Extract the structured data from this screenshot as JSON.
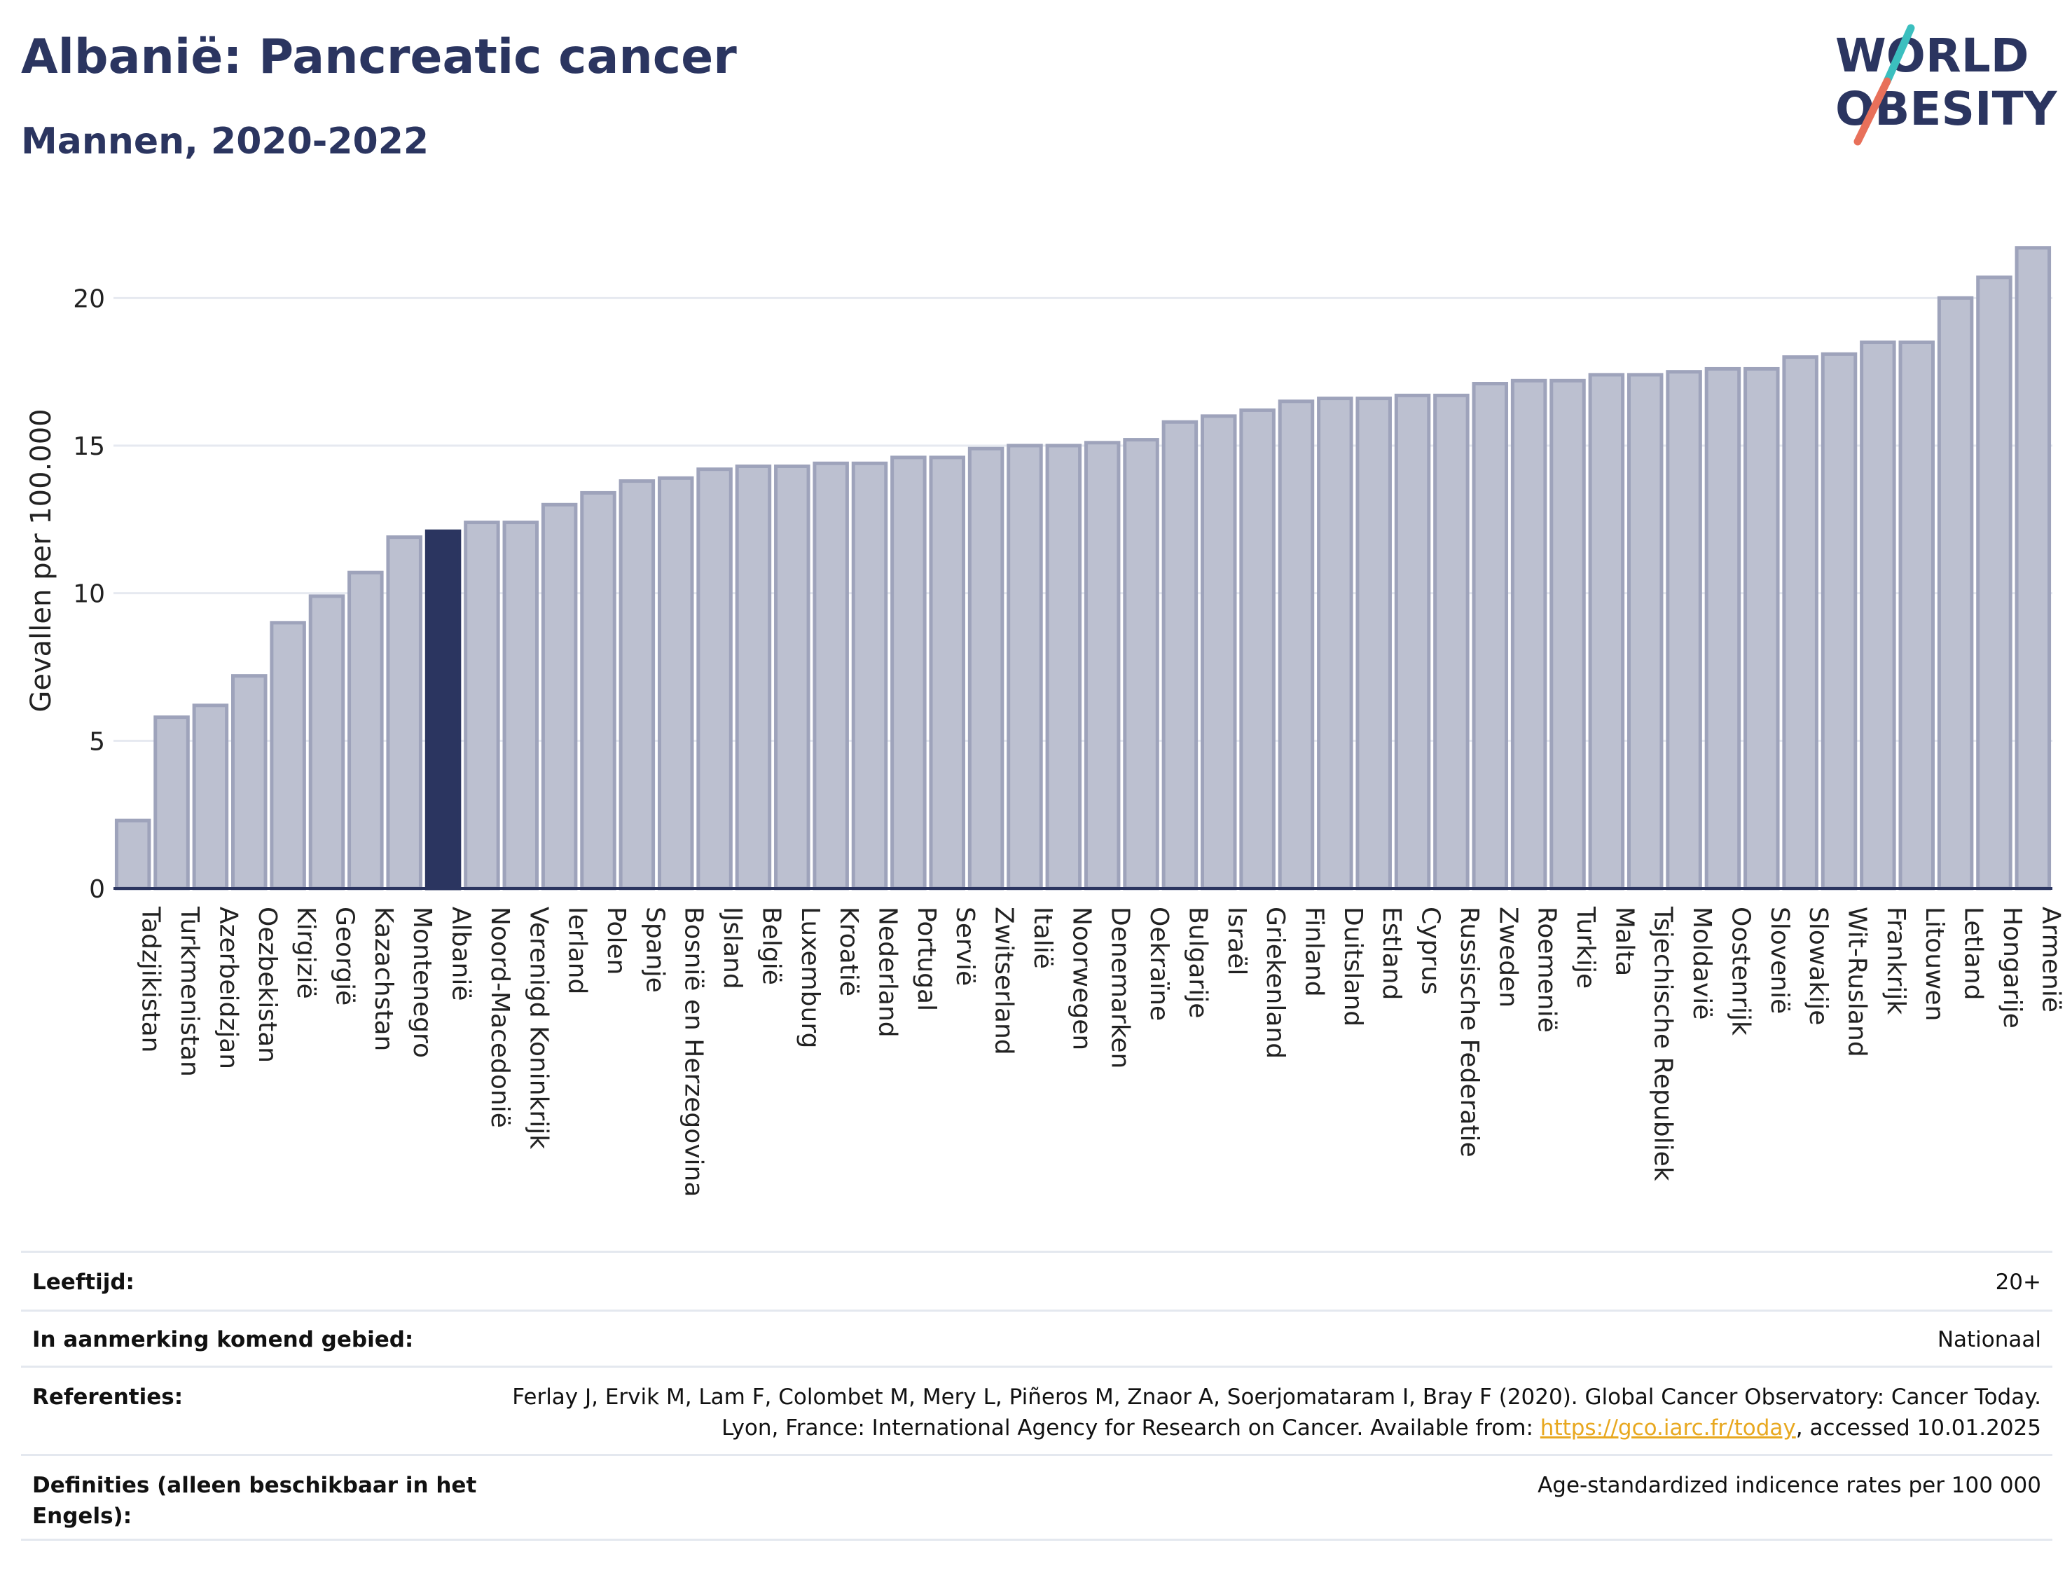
{
  "header": {
    "title": "Albanië: Pancreatic cancer",
    "subtitle": "Mannen, 2020-2022"
  },
  "logo": {
    "line1": "WORLD",
    "line2": "OBESITY"
  },
  "colors": {
    "bar": "#bcc0d0",
    "bar_edge": "#9ea3bb",
    "highlight": "#2b3560",
    "grid": "#e6e9f0",
    "logo_teal": "#3bbfbf",
    "logo_coral": "#e8705a"
  },
  "chart_data": {
    "type": "bar",
    "ylabel": "Gevallen per 100.000",
    "ylim": [
      0,
      22.5
    ],
    "yticks": [
      0,
      5,
      10,
      15,
      20
    ],
    "grid": true,
    "highlight": "Albanië",
    "categories": [
      "Tadzjikistan",
      "Turkmenistan",
      "Azerbeidzjan",
      "Oezbekistan",
      "Kirgizië",
      "Georgië",
      "Kazachstan",
      "Montenegro",
      "Albanië",
      "Noord-Macedonië",
      "Verenigd Koninkrijk",
      "Ierland",
      "Polen",
      "Spanje",
      "Bosnië en Herzegovina",
      "IJsland",
      "België",
      "Luxemburg",
      "Kroatië",
      "Nederland",
      "Portugal",
      "Servië",
      "Zwitserland",
      "Italië",
      "Noorwegen",
      "Denemarken",
      "Oekraïne",
      "Bulgarije",
      "Israël",
      "Griekenland",
      "Finland",
      "Duitsland",
      "Estland",
      "Cyprus",
      "Russische Federatie",
      "Zweden",
      "Roemenië",
      "Turkije",
      "Malta",
      "Tsjechische Republiek",
      "Moldavië",
      "Oostenrijk",
      "Slovenië",
      "Slowakije",
      "Wit-Rusland",
      "Frankrijk",
      "Litouwen",
      "Letland",
      "Hongarije",
      "Armenië"
    ],
    "values": [
      2.3,
      5.8,
      6.2,
      7.2,
      9.0,
      9.9,
      10.7,
      11.9,
      12.1,
      12.4,
      12.4,
      13.0,
      13.4,
      13.8,
      13.9,
      14.2,
      14.3,
      14.3,
      14.4,
      14.4,
      14.6,
      14.6,
      14.9,
      15.0,
      15.0,
      15.1,
      15.2,
      15.8,
      16.0,
      16.2,
      16.5,
      16.6,
      16.6,
      16.7,
      16.7,
      17.1,
      17.2,
      17.2,
      17.4,
      17.4,
      17.5,
      17.6,
      17.6,
      18.0,
      18.1,
      18.5,
      18.5,
      20.0,
      20.7,
      21.7
    ]
  },
  "info": {
    "rows": [
      {
        "label": "Leeftijd:",
        "value": "20+"
      },
      {
        "label": "In aanmerking komend gebied:",
        "value": "Nationaal"
      },
      {
        "label": "Referenties:",
        "value_pre": "Ferlay J, Ervik M, Lam F, Colombet M, Mery L, Piñeros M, Znaor A, Soerjomataram I, Bray F (2020). Global Cancer Observatory: Cancer Today. Lyon, France: International Agency for Research on Cancer. Available from: ",
        "link": "https://gco.iarc.fr/today",
        "value_post": ", accessed 10.01.2025"
      },
      {
        "label": "Definities (alleen beschikbaar in het Engels):",
        "value": "Age-standardized indicence rates per 100 000"
      }
    ]
  }
}
